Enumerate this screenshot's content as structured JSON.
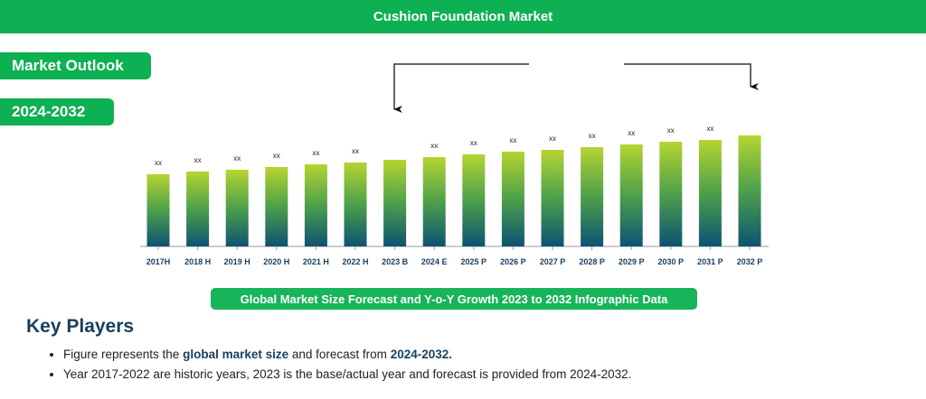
{
  "header": {
    "title": "Cushion Foundation Market"
  },
  "badges": {
    "outlook": "Market Outlook",
    "period": "2024-2032"
  },
  "chart_data": {
    "type": "bar",
    "title": "Global Market Size Forecast and Y-o-Y Growth 2023 to 2032 Infographic Data",
    "categories": [
      "2017H",
      "2018 H",
      "2019 H",
      "2020 H",
      "2021 H",
      "2022 H",
      "2023 B",
      "2024 E",
      "2025 P",
      "2026 P",
      "2027 P",
      "2028 P",
      "2029 P",
      "2030 P",
      "2031 P",
      "2032 P"
    ],
    "values": [
      80,
      83,
      85,
      88,
      91,
      93,
      96,
      99,
      102,
      105,
      107,
      110,
      113,
      116,
      118,
      123
    ],
    "value_note": "relative bar heights (no y-axis shown)",
    "data_labels": [
      "xx",
      "xx",
      "xx",
      "xx",
      "xx",
      "xx",
      null,
      "xx",
      "xx",
      "xx",
      "xx",
      "xx",
      "xx",
      "xx",
      "xx",
      null
    ],
    "xlabel": "",
    "ylabel": "",
    "grid": false,
    "colors": {
      "top": "#b5d531",
      "mid": "#4da04a",
      "bottom": "#0d5273"
    }
  },
  "key_players": {
    "heading": "Key Players",
    "b1_pre": "Figure represents the ",
    "b1_bold1": "global market size",
    "b1_mid": " and forecast from ",
    "b1_bold2": "2024-2032.",
    "b2": "Year 2017-2022 are historic years, 2023 is the base/actual year and forecast is provided from 2024-2032."
  }
}
